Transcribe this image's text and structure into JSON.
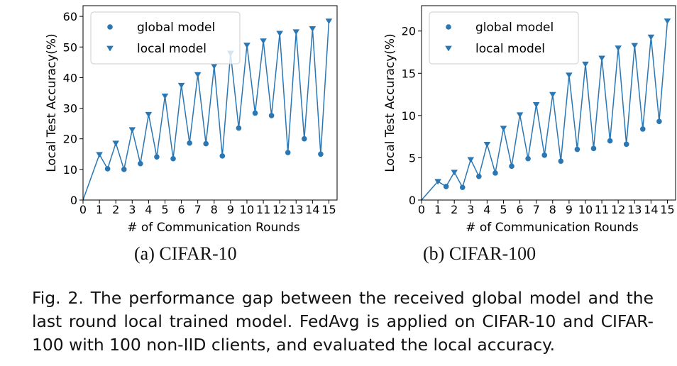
{
  "charts": [
    {
      "id": "a",
      "chart_data": {
        "type": "line",
        "xlabel": "# of Communication Rounds",
        "ylabel": "Local Test Accuracy(%)",
        "xlim": [
          0,
          15.5
        ],
        "ylim": [
          0,
          63.5
        ],
        "xticks": [
          0,
          1,
          2,
          3,
          4,
          5,
          6,
          7,
          8,
          9,
          10,
          11,
          12,
          13,
          14,
          15
        ],
        "yticks": [
          0,
          10,
          20,
          30,
          40,
          50,
          60
        ],
        "legend": {
          "position": "top-left",
          "entries": [
            {
              "label": "global model",
              "marker": "circle"
            },
            {
              "label": "local model",
              "marker": "triangle-down"
            }
          ]
        },
        "series": [
          {
            "name": "global model",
            "marker": "circle",
            "x": [
              1.5,
              2.5,
              3.5,
              4.5,
              5.5,
              6.5,
              7.5,
              8.5,
              9.5,
              10.5,
              11.5,
              12.5,
              13.5,
              14.5
            ],
            "y": [
              10.2,
              10.0,
              11.9,
              14.1,
              13.5,
              18.6,
              18.4,
              14.4,
              23.5,
              28.4,
              27.6,
              15.5,
              20.0,
              15.0
            ]
          },
          {
            "name": "local model",
            "marker": "triangle-down",
            "x": [
              1,
              2,
              3,
              4,
              5,
              6,
              7,
              8,
              9,
              10,
              11,
              12,
              13,
              14,
              15
            ],
            "y": [
              14.9,
              18.6,
              23.0,
              28.0,
              34.0,
              37.5,
              41.0,
              43.8,
              48.0,
              50.6,
              52.0,
              54.5,
              55.0,
              56.0,
              58.5
            ]
          }
        ],
        "connector_x": [
          0,
          1,
          1.5,
          2,
          2.5,
          3,
          3.5,
          4,
          4.5,
          5,
          5.5,
          6,
          6.5,
          7,
          7.5,
          8,
          8.5,
          9,
          9.5,
          10,
          10.5,
          11,
          11.5,
          12,
          12.5,
          13,
          13.5,
          14,
          14.5,
          15
        ],
        "connector_y": [
          0,
          14.9,
          10.2,
          18.6,
          10.0,
          23.0,
          11.9,
          28.0,
          14.1,
          34.0,
          13.5,
          37.5,
          18.6,
          41.0,
          18.4,
          43.8,
          14.4,
          48.0,
          23.5,
          50.6,
          28.4,
          52.0,
          27.6,
          54.5,
          15.5,
          55.0,
          20.0,
          56.0,
          15.0,
          58.5
        ]
      },
      "subcaption": "(a)  CIFAR-10"
    },
    {
      "id": "b",
      "chart_data": {
        "type": "line",
        "xlabel": "# of Communication Rounds",
        "ylabel": "Local Test Accuracy(%)",
        "xlim": [
          0,
          15.5
        ],
        "ylim": [
          0,
          23
        ],
        "xticks": [
          0,
          1,
          2,
          3,
          4,
          5,
          6,
          7,
          8,
          9,
          10,
          11,
          12,
          13,
          14,
          15
        ],
        "yticks": [
          0,
          5,
          10,
          15,
          20
        ],
        "legend": {
          "position": "top-left",
          "entries": [
            {
              "label": "global model",
              "marker": "circle"
            },
            {
              "label": "local model",
              "marker": "triangle-down"
            }
          ]
        },
        "series": [
          {
            "name": "global model",
            "marker": "circle",
            "x": [
              1.5,
              2.5,
              3.5,
              4.5,
              5.5,
              6.5,
              7.5,
              8.5,
              9.5,
              10.5,
              11.5,
              12.5,
              13.5,
              14.5
            ],
            "y": [
              1.6,
              1.5,
              2.8,
              3.2,
              4.0,
              4.9,
              5.3,
              4.6,
              6.0,
              6.1,
              7.0,
              6.6,
              8.4,
              9.3
            ]
          },
          {
            "name": "local model",
            "marker": "triangle-down",
            "x": [
              1,
              2,
              3,
              4,
              5,
              6,
              7,
              8,
              9,
              10,
              11,
              12,
              13,
              14,
              15
            ],
            "y": [
              2.2,
              3.3,
              4.8,
              6.6,
              8.5,
              10.1,
              11.3,
              12.5,
              14.8,
              16.1,
              16.8,
              18.0,
              18.3,
              19.3,
              21.2
            ]
          }
        ],
        "connector_x": [
          0,
          1,
          1.5,
          2,
          2.5,
          3,
          3.5,
          4,
          4.5,
          5,
          5.5,
          6,
          6.5,
          7,
          7.5,
          8,
          8.5,
          9,
          9.5,
          10,
          10.5,
          11,
          11.5,
          12,
          12.5,
          13,
          13.5,
          14,
          14.5,
          15
        ],
        "connector_y": [
          0,
          2.2,
          1.6,
          3.3,
          1.5,
          4.8,
          2.8,
          6.6,
          3.2,
          8.5,
          4.0,
          10.1,
          4.9,
          11.3,
          5.3,
          12.5,
          4.6,
          14.8,
          6.0,
          16.1,
          6.1,
          16.8,
          7.0,
          18.0,
          6.6,
          18.3,
          8.4,
          19.3,
          9.3,
          21.2
        ]
      },
      "subcaption": "(b)  CIFAR-100"
    }
  ],
  "colors": {
    "series": "#2a77b4",
    "axis": "#000000"
  },
  "caption": "Fig. 2. The performance gap between the received global model and the last round local trained model. FedAvg is applied on CIFAR-10 and CIFAR-100 with 100 non-IID clients, and evaluated the local accuracy."
}
